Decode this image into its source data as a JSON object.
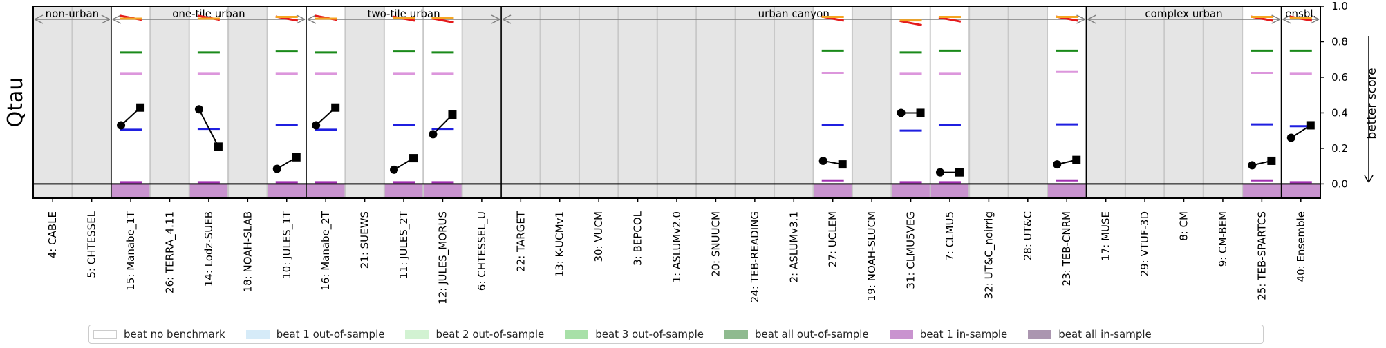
{
  "chart_data": {
    "type": "scatter",
    "ylabel": "Qtau",
    "right_label": "better score",
    "ylim": [
      -0.08,
      1.0
    ],
    "yticks": [
      "0.0",
      "0.2",
      "0.4",
      "0.6",
      "0.8",
      "1.0"
    ],
    "groups": [
      {
        "name": "non-urban",
        "start": 0,
        "end": 2
      },
      {
        "name": "one-tile urban",
        "start": 2,
        "end": 7
      },
      {
        "name": "two-tile urban",
        "start": 7,
        "end": 12
      },
      {
        "name": "urban canyon",
        "start": 12,
        "end": 27
      },
      {
        "name": "complex urban",
        "start": 27,
        "end": 32
      },
      {
        "name": "ensbl.",
        "start": 32,
        "end": 33
      }
    ],
    "models": [
      {
        "label": "4: CABLE",
        "background": "grey"
      },
      {
        "label": "5: CHTESSEL",
        "background": "grey"
      },
      {
        "label": "15: Manabe_1T",
        "background": "white",
        "insample": "beat 1",
        "points": [
          0.33,
          0.43
        ],
        "bench": {
          "red": 0.935,
          "orange": 0.93,
          "green": 0.74,
          "pink": 0.62,
          "blue": 0.305,
          "purple": 0.01
        }
      },
      {
        "label": "26: TERRA_4.11",
        "background": "grey"
      },
      {
        "label": "14: Lodz-SUEB",
        "background": "white",
        "insample": "beat 1",
        "points": [
          0.42,
          0.21
        ],
        "bench": {
          "red": 0.935,
          "orange": 0.93,
          "green": 0.74,
          "pink": 0.62,
          "blue": 0.31,
          "purple": 0.01
        }
      },
      {
        "label": "18: NOAH-SLAB",
        "background": "grey"
      },
      {
        "label": "10: JULES_1T",
        "background": "white",
        "insample": "beat 1",
        "points": [
          0.085,
          0.15
        ],
        "bench": {
          "red": 0.93,
          "orange": 0.94,
          "green": 0.745,
          "pink": 0.62,
          "blue": 0.33,
          "purple": 0.01
        }
      },
      {
        "label": "16: Manabe_2T",
        "background": "white",
        "insample": "beat 1",
        "points": [
          0.33,
          0.43
        ],
        "bench": {
          "red": 0.935,
          "orange": 0.93,
          "green": 0.74,
          "pink": 0.62,
          "blue": 0.305,
          "purple": 0.01
        }
      },
      {
        "label": "21: SUEWS",
        "background": "grey"
      },
      {
        "label": "11: JULES_2T",
        "background": "white",
        "insample": "beat 1",
        "points": [
          0.08,
          0.145
        ],
        "bench": {
          "red": 0.93,
          "orange": 0.935,
          "green": 0.745,
          "pink": 0.62,
          "blue": 0.33,
          "purple": 0.01
        }
      },
      {
        "label": "12: JULES_MORUS",
        "background": "white",
        "insample": "beat 1",
        "points": [
          0.28,
          0.39
        ],
        "bench": {
          "red": 0.92,
          "orange": 0.935,
          "green": 0.74,
          "pink": 0.62,
          "blue": 0.31,
          "purple": 0.01
        }
      },
      {
        "label": "6: CHTESSEL_U",
        "background": "grey"
      },
      {
        "label": "22: TARGET",
        "background": "grey"
      },
      {
        "label": "13: K-UCMv1",
        "background": "grey"
      },
      {
        "label": "30: VUCM",
        "background": "grey"
      },
      {
        "label": "3: BEPCOL",
        "background": "grey"
      },
      {
        "label": "1: ASLUMv2.0",
        "background": "grey"
      },
      {
        "label": "20: SNUUCM",
        "background": "grey"
      },
      {
        "label": "24: TEB-READING",
        "background": "grey"
      },
      {
        "label": "2: ASLUMv3.1",
        "background": "grey"
      },
      {
        "label": "27: UCLEM",
        "background": "white",
        "insample": "beat 1",
        "points": [
          0.13,
          0.11
        ],
        "bench": {
          "red": 0.93,
          "orange": 0.94,
          "green": 0.75,
          "pink": 0.625,
          "blue": 0.33,
          "purple": 0.02
        }
      },
      {
        "label": "19: NOAH-SLUCM",
        "background": "grey"
      },
      {
        "label": "31: CLMU5VEG",
        "background": "white",
        "insample": "beat 1",
        "points": [
          0.4,
          0.4
        ],
        "bench": {
          "red": 0.905,
          "orange": 0.92,
          "green": 0.74,
          "pink": 0.62,
          "blue": 0.3,
          "purple": 0.01
        }
      },
      {
        "label": "7: CLMU5",
        "background": "white",
        "insample": "beat 1",
        "points": [
          0.065,
          0.065
        ],
        "bench": {
          "red": 0.925,
          "orange": 0.94,
          "green": 0.75,
          "pink": 0.62,
          "blue": 0.33,
          "purple": 0.01
        }
      },
      {
        "label": "32: UT&C_noirrig",
        "background": "grey"
      },
      {
        "label": "28: UT&C",
        "background": "grey"
      },
      {
        "label": "23: TEB-CNRM",
        "background": "white",
        "insample": "beat 1",
        "points": [
          0.11,
          0.135
        ],
        "bench": {
          "red": 0.93,
          "orange": 0.94,
          "green": 0.75,
          "pink": 0.63,
          "blue": 0.335,
          "purple": 0.02
        }
      },
      {
        "label": "17: MUSE",
        "background": "grey"
      },
      {
        "label": "29: VTUF-3D",
        "background": "grey"
      },
      {
        "label": "8: CM",
        "background": "grey"
      },
      {
        "label": "9: CM-BEM",
        "background": "grey"
      },
      {
        "label": "25: TEB-SPARTCS",
        "background": "white",
        "insample": "beat 1",
        "points": [
          0.105,
          0.13
        ],
        "bench": {
          "red": 0.93,
          "orange": 0.94,
          "green": 0.75,
          "pink": 0.625,
          "blue": 0.335,
          "purple": 0.02
        }
      },
      {
        "label": "40: Ensemble",
        "background": "white",
        "insample": "beat 1",
        "points": [
          0.26,
          0.33
        ],
        "bench": {
          "red": 0.93,
          "orange": 0.935,
          "green": 0.75,
          "pink": 0.62,
          "blue": 0.325,
          "purple": 0.01
        }
      }
    ],
    "legend": [
      {
        "label": "beat no benchmark",
        "color": "#ffffff"
      },
      {
        "label": "beat 1 out-of-sample",
        "color": "#d6ebf8"
      },
      {
        "label": "beat 2 out-of-sample",
        "color": "#d2f2d2"
      },
      {
        "label": "beat 3 out-of-sample",
        "color": "#a8e0a8"
      },
      {
        "label": "beat all out-of-sample",
        "color": "#8fba8f"
      },
      {
        "label": "beat 1 in-sample",
        "color": "#c993cf"
      },
      {
        "label": "beat all in-sample",
        "color": "#ab96b0"
      }
    ],
    "colors": {
      "red": "#e41a1c",
      "orange": "#f5a623",
      "green": "#1a8a1a",
      "pink": "#dc96dc",
      "blue": "#1f1fe0",
      "purple": "#a030b0",
      "grey_bg": "#e5e5e5",
      "insample_fill": "#c993cf",
      "sep_line": "#c8c8c8"
    }
  }
}
